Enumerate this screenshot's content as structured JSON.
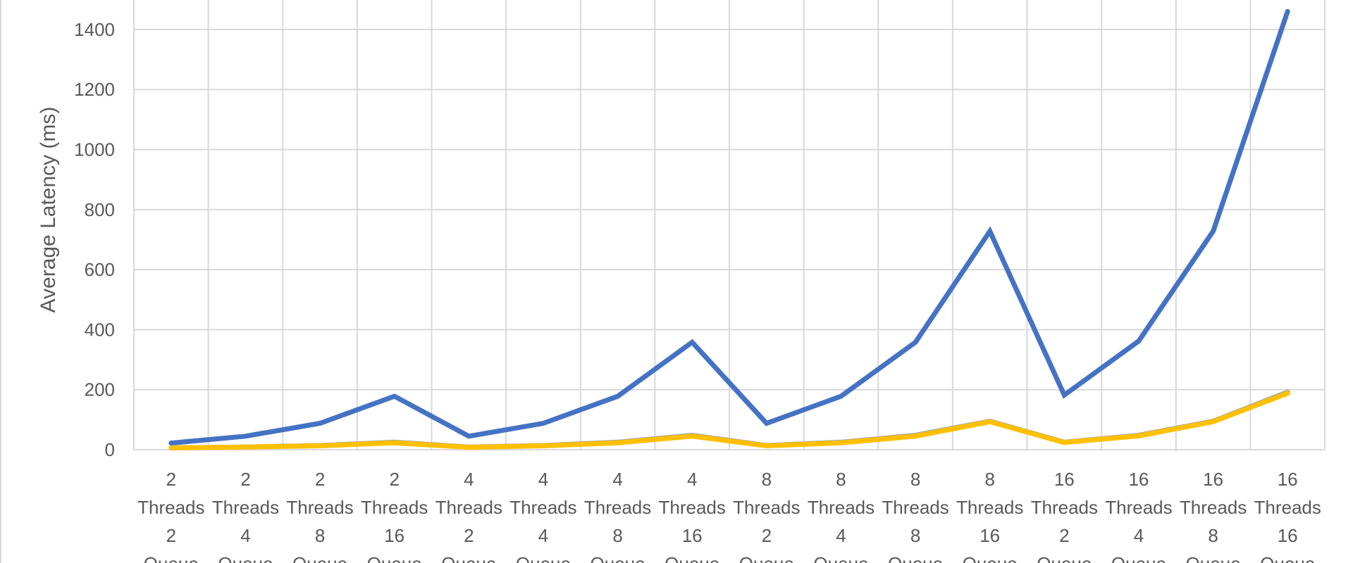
{
  "chart_data": {
    "type": "line",
    "title": "",
    "xlabel": "",
    "ylabel": "Average Latency (ms)",
    "ylim": [
      0,
      1500
    ],
    "yticks": [
      0,
      200,
      400,
      600,
      800,
      1000,
      1200,
      1400
    ],
    "grid": true,
    "categories": [
      [
        "2",
        "Threads",
        "2",
        "Queue"
      ],
      [
        "2",
        "Threads",
        "4",
        "Queue"
      ],
      [
        "2",
        "Threads",
        "8",
        "Queue"
      ],
      [
        "2",
        "Threads",
        "16",
        "Queue"
      ],
      [
        "4",
        "Threads",
        "2",
        "Queue"
      ],
      [
        "4",
        "Threads",
        "4",
        "Queue"
      ],
      [
        "4",
        "Threads",
        "8",
        "Queue"
      ],
      [
        "4",
        "Threads",
        "16",
        "Queue"
      ],
      [
        "8",
        "Threads",
        "2",
        "Queue"
      ],
      [
        "8",
        "Threads",
        "4",
        "Queue"
      ],
      [
        "8",
        "Threads",
        "8",
        "Queue"
      ],
      [
        "8",
        "Threads",
        "16",
        "Queue"
      ],
      [
        "16",
        "Threads",
        "2",
        "Queue"
      ],
      [
        "16",
        "Threads",
        "4",
        "Queue"
      ],
      [
        "16",
        "Threads",
        "8",
        "Queue"
      ],
      [
        "16",
        "Threads",
        "16",
        "Queue"
      ]
    ],
    "series": [
      {
        "color": "#4472C4",
        "values": [
          22,
          45,
          88,
          178,
          45,
          88,
          178,
          358,
          88,
          178,
          358,
          728,
          182,
          362,
          728,
          1460
        ]
      },
      {
        "color": "#A5A5A5",
        "values": [
          6,
          9,
          14,
          25,
          9,
          14,
          25,
          48,
          14,
          25,
          48,
          95,
          25,
          48,
          95,
          192
        ]
      },
      {
        "color": "#FFC000",
        "values": [
          6,
          9,
          13,
          23,
          8,
          13,
          23,
          45,
          13,
          23,
          45,
          93,
          24,
          46,
          93,
          188
        ]
      }
    ]
  }
}
